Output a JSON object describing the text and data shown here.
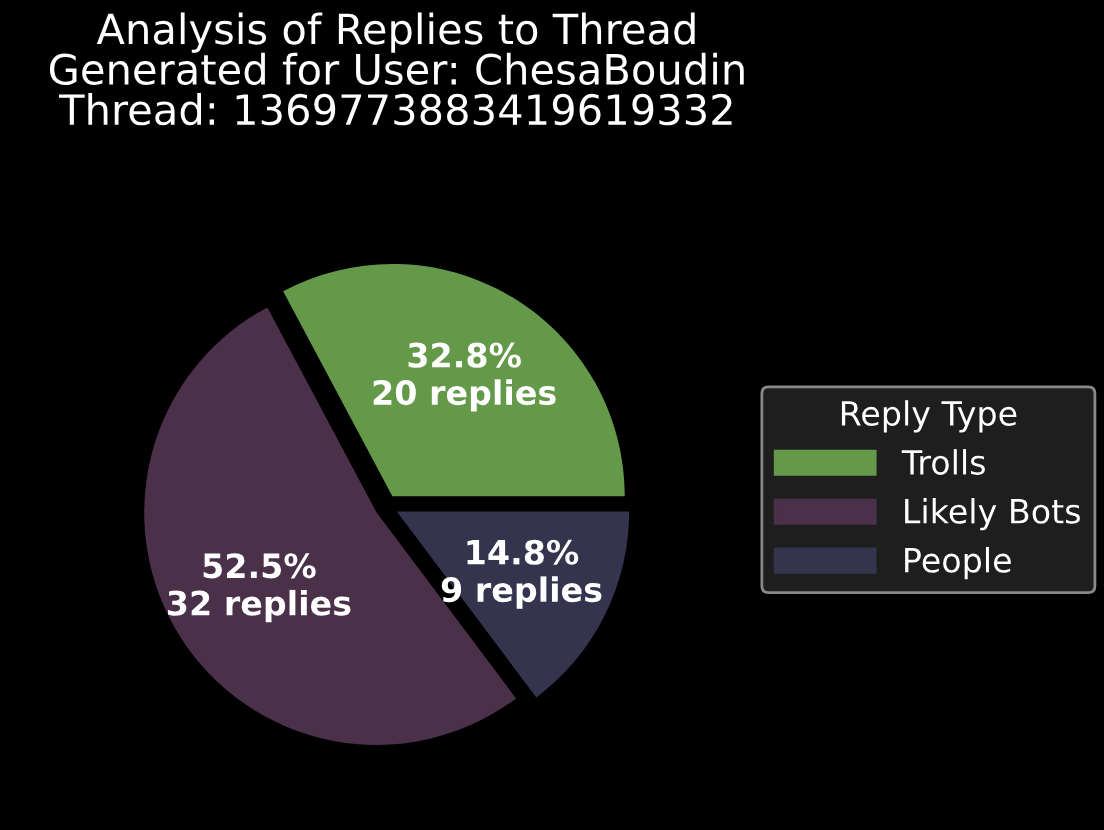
{
  "chart_data": {
    "type": "pie",
    "title": "Analysis of Replies to Thread\nGenerated for User: ChesaBoudin\nThread: 1369773883419619332",
    "legend_title": "Reply Type",
    "legend": "right",
    "categories": [
      "Trolls",
      "Likely Bots",
      "People"
    ],
    "values": [
      20,
      32,
      9
    ],
    "value_labels": [
      "32.8%\n20 replies",
      "52.5%\n32 replies",
      "14.8%\n9 replies"
    ],
    "colors": [
      "#65994a",
      "#4b3049",
      "#34344f"
    ]
  }
}
